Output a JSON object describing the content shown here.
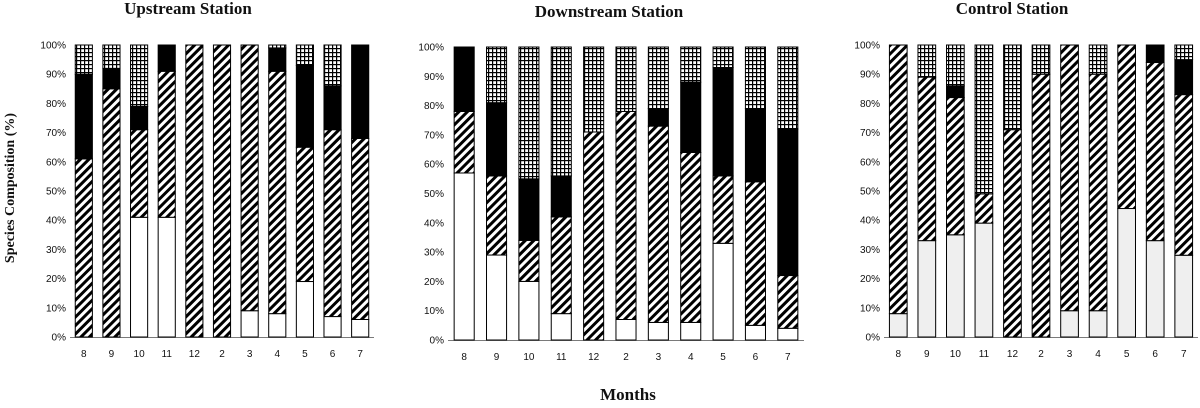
{
  "chart_data": {
    "type": "bar",
    "stacked": true,
    "percent": true,
    "ylabel": "Species Composition (%)",
    "xlabel": "Months",
    "ylim": [
      0,
      100
    ],
    "yticks": [
      "0%",
      "10%",
      "20%",
      "30%",
      "40%",
      "50%",
      "60%",
      "70%",
      "80%",
      "90%",
      "100%"
    ],
    "categories": [
      "8",
      "9",
      "10",
      "11",
      "12",
      "2",
      "3",
      "4",
      "5",
      "6",
      "7"
    ],
    "grid": false,
    "legend": "none",
    "panels": [
      {
        "title": "Upstream Station",
        "series": [
          {
            "pattern": "blank",
            "values": [
              0,
              0,
              41,
              41,
              0,
              0,
              9,
              8,
              19,
              7,
              6
            ]
          },
          {
            "pattern": "diagonal",
            "values": [
              61,
              85,
              30,
              50,
              100,
              100,
              91,
              83,
              46,
              64,
              62
            ]
          },
          {
            "pattern": "solid",
            "values": [
              29,
              7,
              8,
              9,
              0,
              0,
              0,
              8,
              28,
              15,
              32
            ]
          },
          {
            "pattern": "grid",
            "values": [
              10,
              8,
              21,
              0,
              0,
              0,
              0,
              1,
              7,
              14,
              0
            ]
          }
        ]
      },
      {
        "title": "Downstream Station",
        "series": [
          {
            "pattern": "blank",
            "values": [
              57,
              29,
              20,
              9,
              0,
              7,
              6,
              6,
              33,
              5,
              4
            ]
          },
          {
            "pattern": "diagonal",
            "values": [
              21,
              27,
              14,
              33,
              71,
              71,
              67,
              58,
              23,
              49,
              18
            ]
          },
          {
            "pattern": "solid",
            "values": [
              22,
              25,
              21,
              14,
              0,
              0,
              6,
              24,
              37,
              25,
              50
            ]
          },
          {
            "pattern": "grid",
            "values": [
              0,
              19,
              45,
              44,
              29,
              22,
              21,
              12,
              7,
              21,
              28
            ]
          }
        ]
      },
      {
        "title": "Control Station",
        "series": [
          {
            "pattern": "blank",
            "values": [
              8,
              33,
              35,
              39,
              0,
              0,
              9,
              9,
              44,
              33,
              28
            ]
          },
          {
            "pattern": "diagonal",
            "values": [
              92,
              56,
              47,
              10,
              71,
              90,
              91,
              81,
              56,
              61,
              55
            ]
          },
          {
            "pattern": "solid",
            "values": [
              0,
              0,
              4,
              0,
              0,
              0,
              0,
              0,
              0,
              6,
              12
            ]
          },
          {
            "pattern": "grid",
            "values": [
              0,
              11,
              14,
              51,
              29,
              10,
              0,
              10,
              0,
              0,
              5
            ]
          }
        ]
      }
    ]
  }
}
